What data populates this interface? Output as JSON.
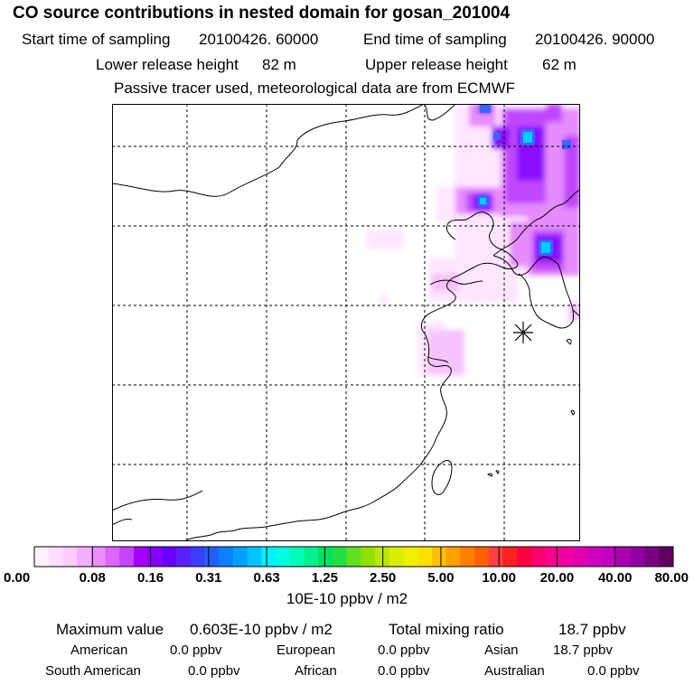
{
  "title": "CO  source contributions in nested domain for gosan_201004",
  "sampling": {
    "start_label": "Start time of sampling",
    "start_value": "20100426. 60000",
    "end_label": "End time of sampling",
    "end_value": "20100426. 90000"
  },
  "release": {
    "lower_label": "Lower release height",
    "lower_value": "82 m",
    "upper_label": "Upper release height",
    "upper_value": "62 m"
  },
  "note": "Passive tracer used, meteorological data are from ECMWF",
  "colorbar": {
    "unit": "10E-10 ppbv / m2",
    "ticks": [
      "0.00",
      "0.08",
      "0.16",
      "0.31",
      "0.63",
      "1.25",
      "2.50",
      "5.00",
      "10.00",
      "20.00",
      "40.00",
      "80.00"
    ],
    "colors": [
      "#fff0ff",
      "#ffddff",
      "#ffccff",
      "#f3b0ff",
      "#e98dff",
      "#dd66ff",
      "#c444ff",
      "#a400ff",
      "#8a00ff",
      "#6a00ff",
      "#5a20ff",
      "#3d3dff",
      "#2060ff",
      "#0a80ff",
      "#00a0ff",
      "#00c4ff",
      "#00f0ff",
      "#00ffe0",
      "#00ffb4",
      "#00f08c",
      "#00e064",
      "#20e040",
      "#60e020",
      "#90e000",
      "#b8e800",
      "#d8f000",
      "#f0f000",
      "#ffe000",
      "#ffc000",
      "#ffa000",
      "#ff8000",
      "#ff6000",
      "#ff4040",
      "#ff2020",
      "#ff0040",
      "#ff0070",
      "#ff0090",
      "#f000a0",
      "#e000b0",
      "#d000c0",
      "#c000c0",
      "#a800b0",
      "#9000a0",
      "#780080",
      "#600060"
    ]
  },
  "stats": {
    "max_label": "Maximum value",
    "max_value": "0.603E-10 ppbv / m2",
    "total_label": "Total mixing ratio",
    "total_value": "18.7 ppbv",
    "american_label": "American",
    "american_value": "0.0 ppbv",
    "european_label": "European",
    "european_value": "0.0 ppbv",
    "asian_label": "Asian",
    "asian_value": "18.7 ppbv",
    "south_american_label": "South American",
    "south_american_value": "0.0 ppbv",
    "african_label": "African",
    "african_value": "0.0 ppbv",
    "australian_label": "Australian",
    "australian_value": "0.0 ppbv"
  },
  "map": {
    "receptor_marker": "star-icon",
    "plume_colors": [
      "#ffe6ff",
      "#f5c2ff",
      "#e58cff",
      "#c046ff",
      "#8a10ff",
      "#3a66ff",
      "#00ccff"
    ]
  }
}
